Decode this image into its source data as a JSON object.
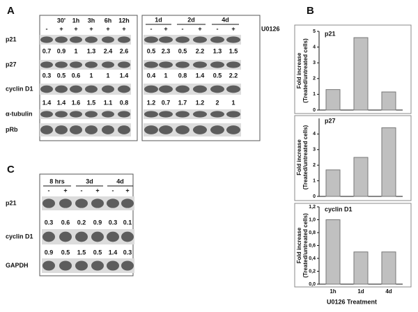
{
  "panel_a": {
    "label": "A",
    "agent": "U0126",
    "left": {
      "times": [
        "30'",
        "1h",
        "3h",
        "6h",
        "12h"
      ],
      "treatment": [
        "-",
        "+",
        "+",
        "+",
        "+",
        "+"
      ]
    },
    "right": {
      "groups": [
        "1d",
        "2d",
        "4d"
      ],
      "treatment": [
        "-",
        "+",
        "-",
        "+",
        "-",
        "+"
      ]
    },
    "rows": [
      {
        "name": "p21",
        "left": [
          0.7,
          0.9,
          1,
          1.3,
          2.4,
          2.6
        ],
        "right": [
          0.5,
          2.3,
          0.5,
          2.2,
          1.3,
          1.5
        ]
      },
      {
        "name": "p27",
        "left": [
          0.3,
          0.5,
          0.6,
          1,
          1,
          1.4
        ],
        "right": [
          0.4,
          1,
          0.8,
          1.4,
          0.5,
          2.2
        ]
      },
      {
        "name": "cyclin D1",
        "left": [
          1.4,
          1.4,
          1.6,
          1.5,
          1.1,
          0.8
        ],
        "right": [
          1.2,
          0.7,
          1.7,
          1.2,
          2,
          1
        ]
      },
      {
        "name": "α-tubulin"
      },
      {
        "name": "pRb"
      }
    ]
  },
  "panel_b": {
    "label": "B"
  },
  "chart_data": {
    "type": "bar",
    "categories": [
      "1h",
      "1d",
      "4d"
    ],
    "xlabel": "U0126 Treatment",
    "ylabel": [
      "Fold increase",
      "(Treated/untreated cells)"
    ],
    "color": "#c0c0c0",
    "panels": [
      {
        "title": "p21",
        "values": [
          1.3,
          4.6,
          1.15
        ],
        "ylim": [
          0,
          5
        ],
        "yticks": [
          0,
          1,
          2,
          3,
          4,
          5
        ]
      },
      {
        "title": "p27",
        "values": [
          1.7,
          2.5,
          4.4
        ],
        "ylim": [
          0,
          5
        ],
        "yticks": [
          0,
          1,
          2,
          3,
          4
        ]
      },
      {
        "title": "cyclin D1",
        "values": [
          1.0,
          0.5,
          0.5
        ],
        "ylim": [
          0,
          1.2
        ],
        "yticks": [
          {
            "value": 0,
            "label": "0,0"
          },
          {
            "value": 0.2,
            "label": "0,2"
          },
          {
            "value": 0.4,
            "label": "0,4"
          },
          {
            "value": 0.6,
            "label": "0,6"
          },
          {
            "value": 0.8,
            "label": "0,8"
          },
          {
            "value": 1.0,
            "label": "1,0"
          },
          {
            "value": 1.2,
            "label": "1,2"
          }
        ]
      }
    ]
  },
  "panel_c": {
    "label": "C",
    "groups": [
      "8 hrs",
      "3d",
      "4d"
    ],
    "treatment": [
      "-",
      "+",
      "-",
      "+",
      "-",
      "+"
    ],
    "rows": [
      {
        "name": "p21",
        "values": [
          0.3,
          0.6,
          0.2,
          0.9,
          0.3,
          0.1
        ]
      },
      {
        "name": "cyclin D1",
        "values": [
          0.9,
          0.5,
          1.5,
          0.5,
          1.4,
          0.3
        ]
      },
      {
        "name": "GAPDH"
      }
    ]
  }
}
